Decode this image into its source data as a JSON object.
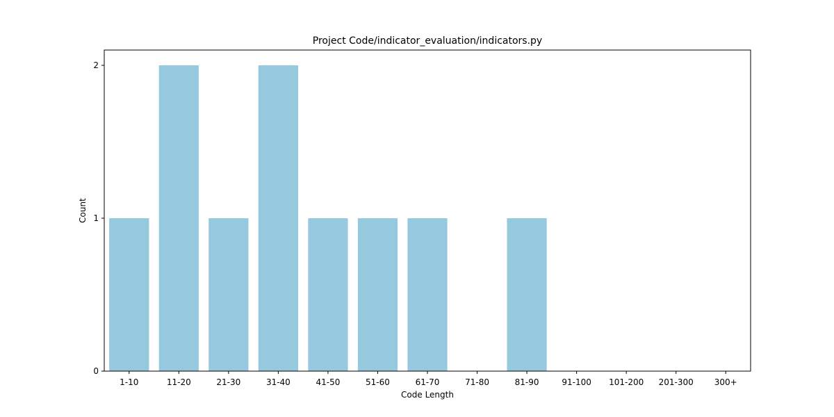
{
  "chart_data": {
    "type": "bar",
    "title": "Project Code/indicator_evaluation/indicators.py",
    "xlabel": "Code Length",
    "ylabel": "Count",
    "categories": [
      "1-10",
      "11-20",
      "21-30",
      "31-40",
      "41-50",
      "51-60",
      "61-70",
      "71-80",
      "81-90",
      "91-100",
      "101-200",
      "201-300",
      "300+"
    ],
    "values": [
      1,
      2,
      1,
      2,
      1,
      1,
      1,
      0,
      1,
      0,
      0,
      0,
      0
    ],
    "ylim": [
      0,
      2.1
    ],
    "yticks": [
      0,
      1,
      2
    ],
    "grid": false,
    "bar_color": "#96c9de"
  }
}
